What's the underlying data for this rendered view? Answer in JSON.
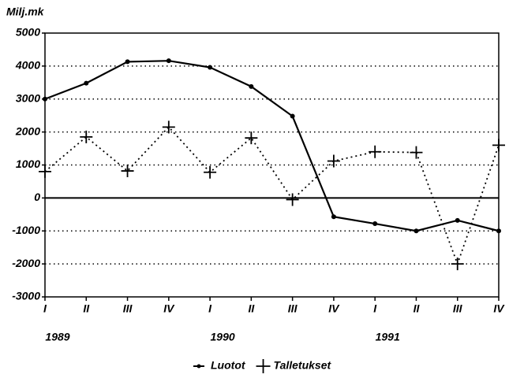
{
  "chart_data": {
    "type": "line",
    "y_axis_label": "Milj.mk",
    "categories": [
      "I",
      "II",
      "III",
      "IV",
      "I",
      "II",
      "III",
      "IV",
      "I",
      "II",
      "III",
      "IV"
    ],
    "year_labels": [
      "1989",
      "1990",
      "1991"
    ],
    "series": [
      {
        "name": "Luotot",
        "color": "#000000",
        "line_style": "solid",
        "marker": "dot",
        "values": [
          3000,
          3480,
          4130,
          4160,
          3960,
          3380,
          2480,
          -570,
          -780,
          -1000,
          -680,
          -1000
        ]
      },
      {
        "name": "Talletukset",
        "color": "#000000",
        "line_style": "dotted",
        "marker": "plus",
        "values": [
          800,
          1850,
          820,
          2150,
          780,
          1820,
          -50,
          1120,
          1400,
          1380,
          -2000,
          1600
        ]
      }
    ],
    "ylim": [
      -3000,
      5000
    ],
    "yticks": [
      -3000,
      -2000,
      -1000,
      0,
      1000,
      2000,
      3000,
      4000,
      5000
    ],
    "grid": true,
    "legend": "bottom"
  }
}
